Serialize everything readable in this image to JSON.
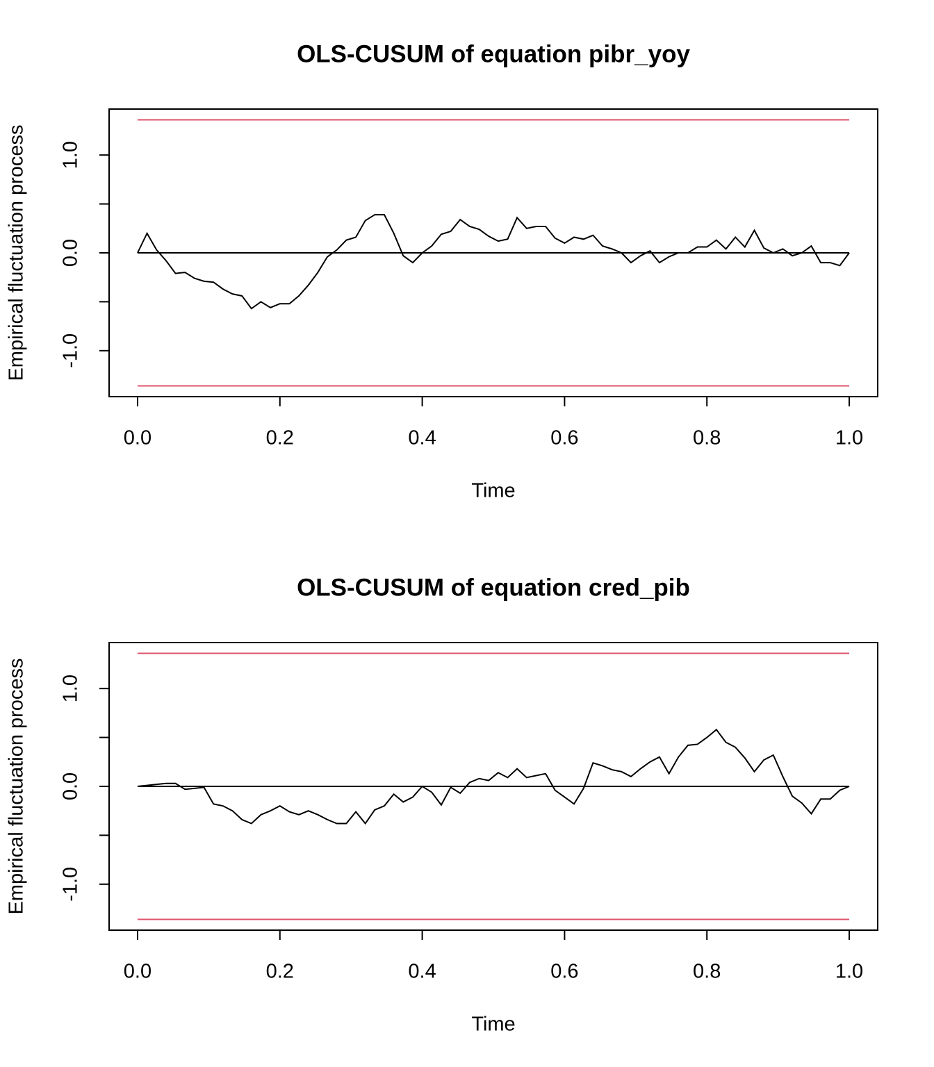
{
  "chart_data": [
    {
      "type": "line",
      "title": "OLS-CUSUM of equation pibr_yoy",
      "xlabel": "Time",
      "ylabel": "Empirical fluctuation process",
      "xlim": [
        -0.04,
        1.04
      ],
      "ylim": [
        -1.47,
        1.47
      ],
      "xticks": [
        {
          "value": 0,
          "label": "0.0"
        },
        0.2,
        0.4,
        0.6,
        0.8,
        {
          "value": 1,
          "label": "1.0"
        }
      ],
      "yticks": [
        {
          "value": -1,
          "label": "-1.0"
        },
        {
          "value": -0.5,
          "label": null
        },
        {
          "value": 0,
          "label": "0.0"
        },
        {
          "value": 0.5,
          "label": null
        },
        {
          "value": 1,
          "label": "1.0"
        }
      ],
      "hlines": [
        {
          "value": 1.36,
          "color": "#DF536B"
        },
        {
          "value": -1.36,
          "color": "#DF536B"
        },
        {
          "value": 0,
          "color": "#000000"
        }
      ],
      "color": "#000000",
      "x": [
        0,
        0.0133,
        0.0267,
        0.04,
        0.0533,
        0.0667,
        0.08,
        0.0933,
        0.1067,
        0.12,
        0.1333,
        0.1467,
        0.16,
        0.1733,
        0.1867,
        0.2,
        0.2133,
        0.2267,
        0.24,
        0.2533,
        0.2667,
        0.28,
        0.2933,
        0.3067,
        0.32,
        0.3333,
        0.3467,
        0.36,
        0.3733,
        0.3867,
        0.4,
        0.4133,
        0.4267,
        0.44,
        0.4533,
        0.4667,
        0.48,
        0.4933,
        0.5067,
        0.52,
        0.5333,
        0.5467,
        0.56,
        0.5733,
        0.5867,
        0.6,
        0.6133,
        0.6267,
        0.64,
        0.6533,
        0.6667,
        0.68,
        0.6933,
        0.7067,
        0.72,
        0.7333,
        0.7467,
        0.76,
        0.7733,
        0.7867,
        0.8,
        0.8133,
        0.8267,
        0.84,
        0.8533,
        0.8667,
        0.88,
        0.8933,
        0.9067,
        0.92,
        0.9333,
        0.9467,
        0.96,
        0.9733,
        0.9867,
        1
      ],
      "values": [
        0,
        0.2,
        0.03,
        -0.08,
        -0.21,
        -0.2,
        -0.26,
        -0.29,
        -0.3,
        -0.37,
        -0.42,
        -0.44,
        -0.57,
        -0.5,
        -0.56,
        -0.52,
        -0.52,
        -0.44,
        -0.33,
        -0.2,
        -0.04,
        0.03,
        0.13,
        0.16,
        0.33,
        0.39,
        0.39,
        0.2,
        -0.03,
        -0.1,
        0,
        0.07,
        0.19,
        0.22,
        0.34,
        0.27,
        0.24,
        0.17,
        0.12,
        0.14,
        0.36,
        0.25,
        0.27,
        0.27,
        0.15,
        0.1,
        0.16,
        0.14,
        0.18,
        0.07,
        0.04,
        0,
        -0.1,
        -0.03,
        0.02,
        -0.1,
        -0.04,
        0,
        0,
        0.06,
        0.06,
        0.13,
        0.04,
        0.16,
        0.06,
        0.23,
        0.05,
        0,
        0.04,
        -0.03,
        0,
        0.07,
        -0.1,
        -0.1,
        -0.13,
        0
      ]
    },
    {
      "type": "line",
      "title": "OLS-CUSUM of equation cred_pib",
      "xlabel": "Time",
      "ylabel": "Empirical fluctuation process",
      "xlim": [
        -0.04,
        1.04
      ],
      "ylim": [
        -1.47,
        1.47
      ],
      "xticks": [
        {
          "value": 0,
          "label": "0.0"
        },
        0.2,
        0.4,
        0.6,
        0.8,
        {
          "value": 1,
          "label": "1.0"
        }
      ],
      "yticks": [
        {
          "value": -1,
          "label": "-1.0"
        },
        {
          "value": -0.5,
          "label": null
        },
        {
          "value": 0,
          "label": "0.0"
        },
        {
          "value": 0.5,
          "label": null
        },
        {
          "value": 1,
          "label": "1.0"
        }
      ],
      "hlines": [
        {
          "value": 1.36,
          "color": "#DF536B"
        },
        {
          "value": -1.36,
          "color": "#DF536B"
        },
        {
          "value": 0,
          "color": "#000000"
        }
      ],
      "color": "#000000",
      "x": [
        0,
        0.0133,
        0.0267,
        0.04,
        0.0533,
        0.0667,
        0.08,
        0.0933,
        0.1067,
        0.12,
        0.1333,
        0.1467,
        0.16,
        0.1733,
        0.1867,
        0.2,
        0.2133,
        0.2267,
        0.24,
        0.2533,
        0.2667,
        0.28,
        0.2933,
        0.3067,
        0.32,
        0.3333,
        0.3467,
        0.36,
        0.3733,
        0.3867,
        0.4,
        0.4133,
        0.4267,
        0.44,
        0.4533,
        0.4667,
        0.48,
        0.4933,
        0.5067,
        0.52,
        0.5333,
        0.5467,
        0.56,
        0.5733,
        0.5867,
        0.6,
        0.6133,
        0.6267,
        0.64,
        0.6533,
        0.6667,
        0.68,
        0.6933,
        0.7067,
        0.72,
        0.7333,
        0.7467,
        0.76,
        0.7733,
        0.7867,
        0.8,
        0.8133,
        0.8267,
        0.84,
        0.8533,
        0.8667,
        0.88,
        0.8933,
        0.9067,
        0.92,
        0.9333,
        0.9467,
        0.96,
        0.9733,
        0.9867,
        1
      ],
      "values": [
        0,
        0.01,
        0.02,
        0.03,
        0.03,
        -0.03,
        -0.02,
        -0.01,
        -0.18,
        -0.2,
        -0.25,
        -0.34,
        -0.38,
        -0.29,
        -0.25,
        -0.2,
        -0.26,
        -0.29,
        -0.25,
        -0.29,
        -0.34,
        -0.38,
        -0.38,
        -0.26,
        -0.38,
        -0.24,
        -0.2,
        -0.08,
        -0.16,
        -0.11,
        0,
        -0.06,
        -0.19,
        -0.01,
        -0.07,
        0.04,
        0.08,
        0.06,
        0.14,
        0.09,
        0.18,
        0.09,
        0.11,
        0.13,
        -0.04,
        -0.11,
        -0.18,
        -0.02,
        0.24,
        0.21,
        0.17,
        0.15,
        0.1,
        0.18,
        0.25,
        0.3,
        0.13,
        0.3,
        0.42,
        0.43,
        0.5,
        0.58,
        0.45,
        0.4,
        0.29,
        0.15,
        0.27,
        0.32,
        0.1,
        -0.1,
        -0.17,
        -0.28,
        -0.13,
        -0.13,
        -0.04,
        0
      ]
    }
  ]
}
